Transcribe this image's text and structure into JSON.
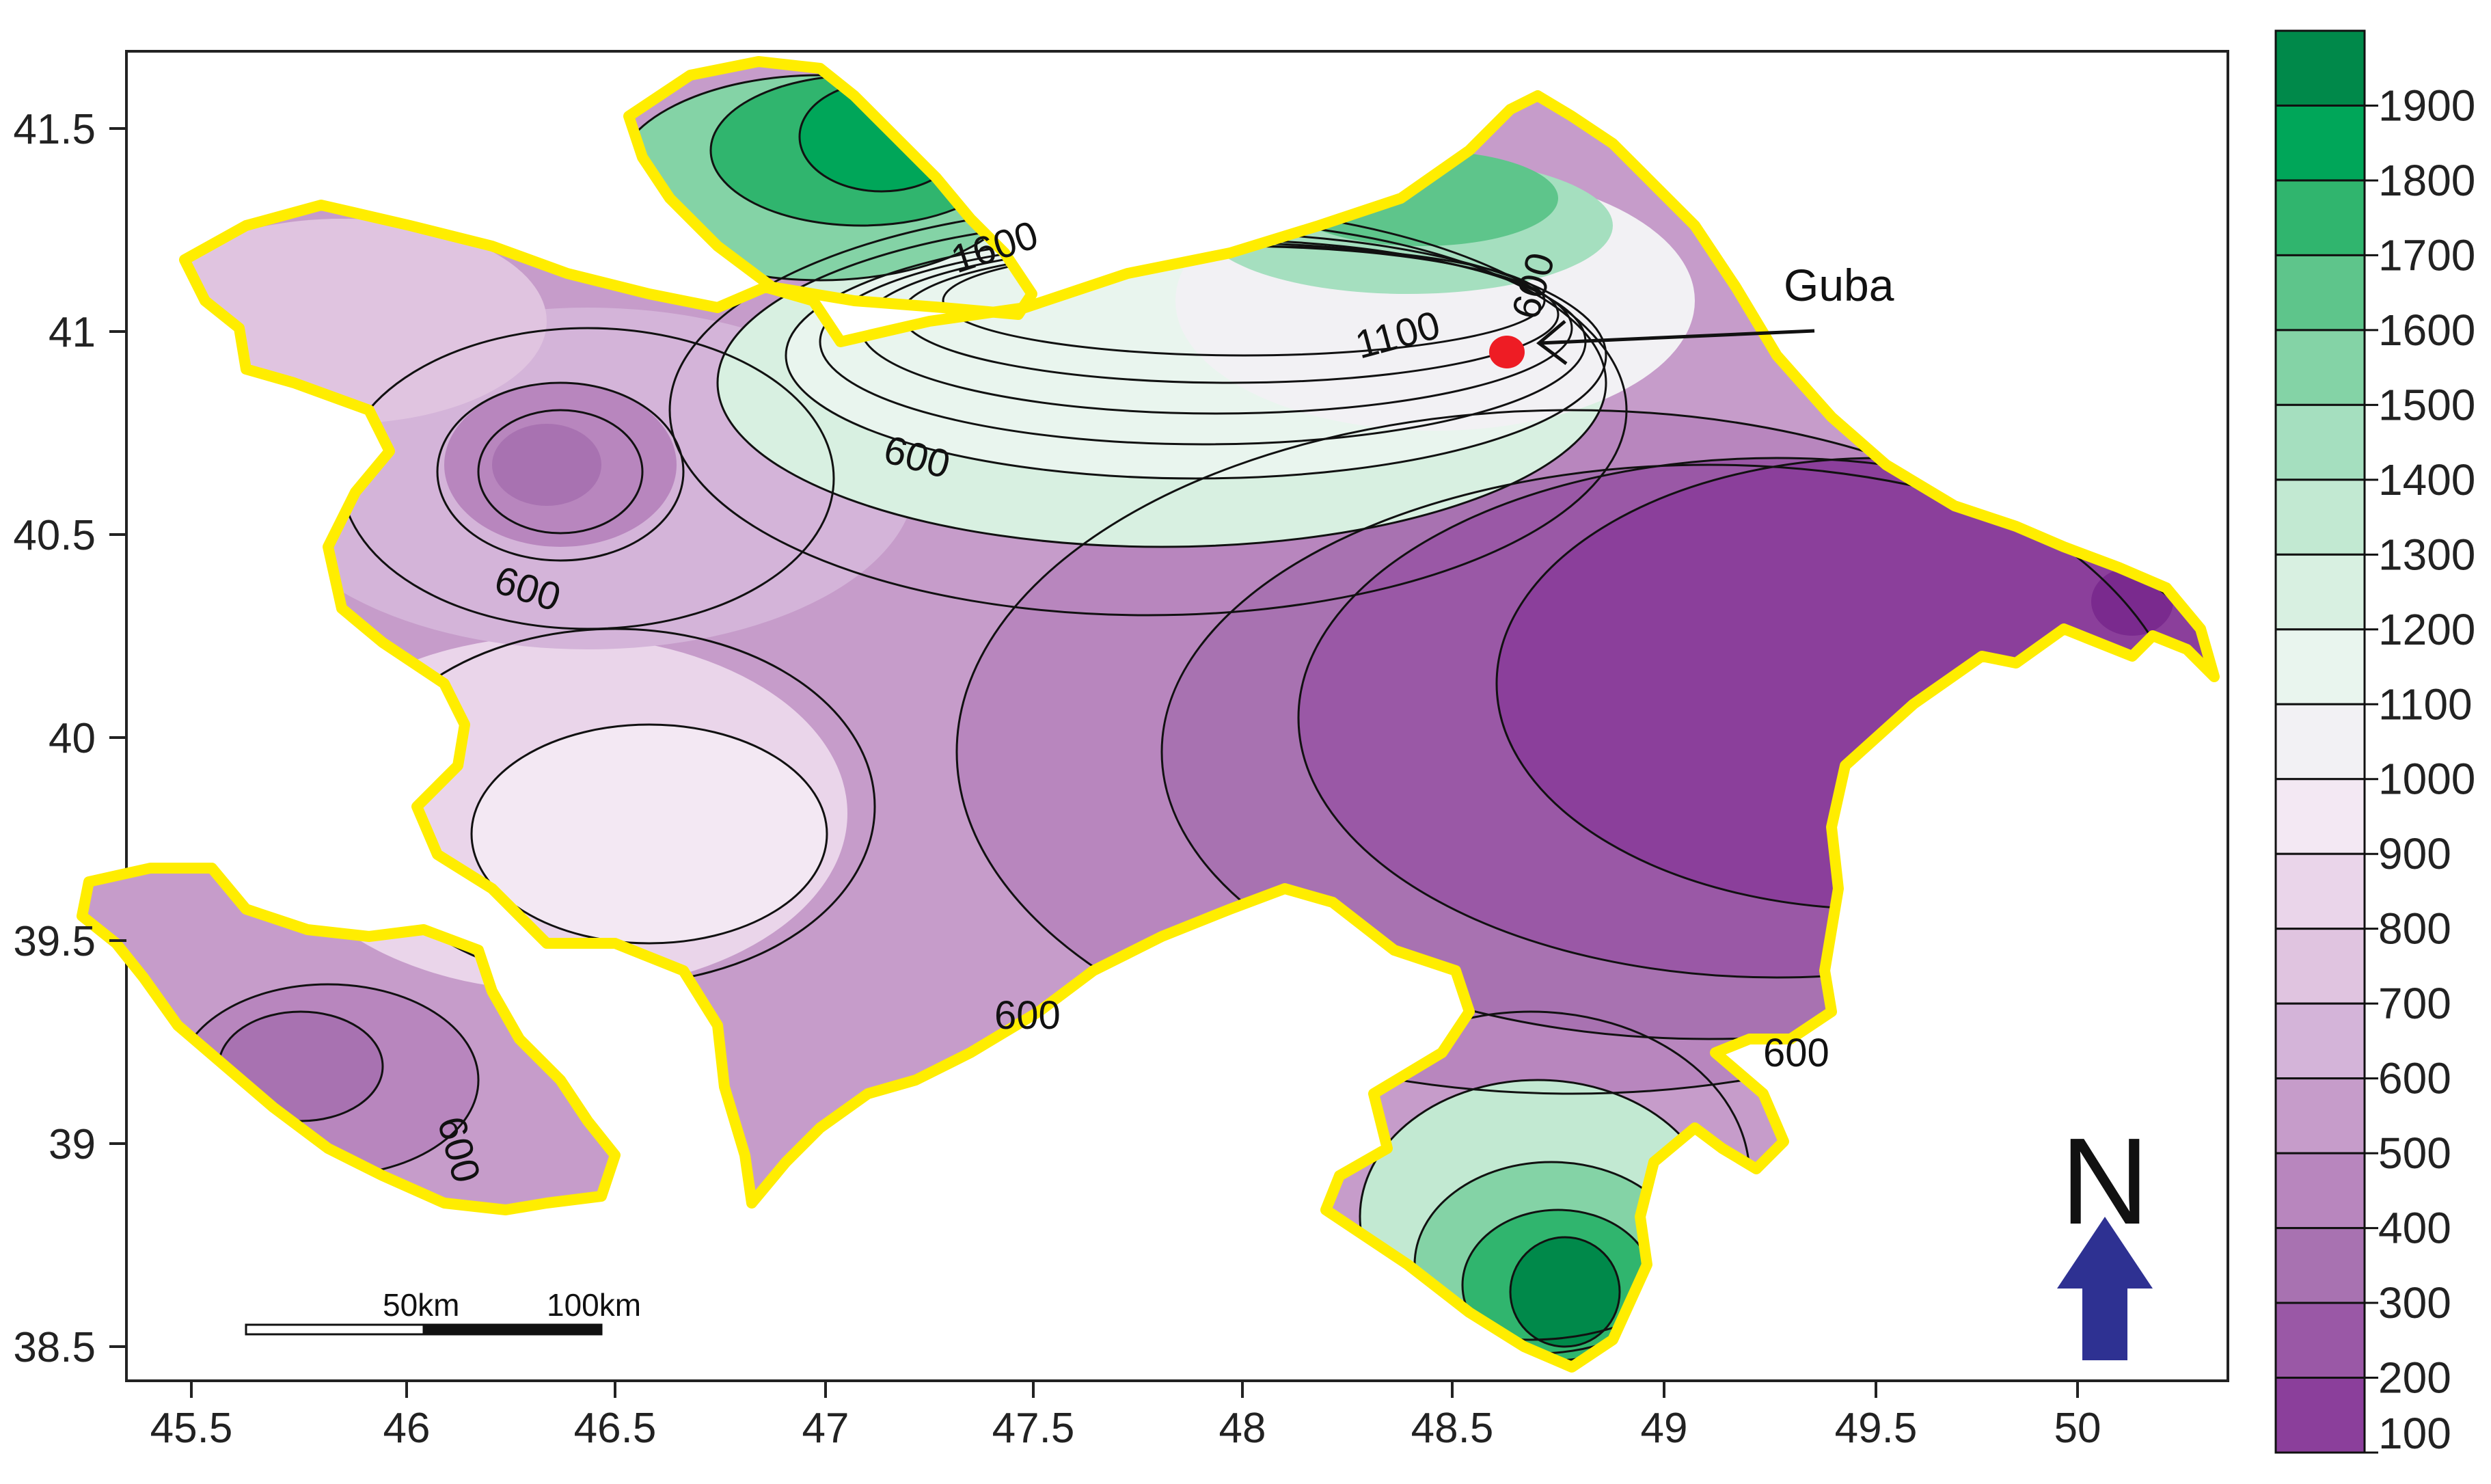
{
  "map": {
    "x_ticks": [
      "45.5",
      "46",
      "46.5",
      "47",
      "47.5",
      "48",
      "48.5",
      "49",
      "49.5",
      "50"
    ],
    "y_ticks": [
      "41.5",
      "41",
      "40.5",
      "40",
      "39.5",
      "39",
      "38.5"
    ],
    "contour_labels": [
      "1600",
      "1100",
      "600",
      "600",
      "600",
      "600",
      "600",
      "600",
      "600"
    ],
    "annotation": {
      "label": "Guba",
      "marker_color": "#ee1c24"
    },
    "scale_bar": {
      "labels": [
        "50km",
        "100km"
      ]
    },
    "north_arrow": {
      "label": "N",
      "color": "#2e3192"
    },
    "border_color": "#ffed00"
  },
  "legend": {
    "values": [
      "1900",
      "1800",
      "1700",
      "1600",
      "1500",
      "1400",
      "1300",
      "1200",
      "1100",
      "1000",
      "900",
      "800",
      "700",
      "600",
      "500",
      "400",
      "300",
      "200",
      "100"
    ],
    "colors": [
      "#00894a",
      "#00a659",
      "#30b56e",
      "#5ec58b",
      "#84d3a6",
      "#a5dfbf",
      "#c2e9d2",
      "#d8f0e1",
      "#e9f5ee",
      "#f2f1f4",
      "#f3e8f3",
      "#ead5ea",
      "#e0c4e0",
      "#d4b4d9",
      "#c69cca",
      "#b886be",
      "#a872b1",
      "#9a58a6",
      "#8b3f9b"
    ]
  }
}
